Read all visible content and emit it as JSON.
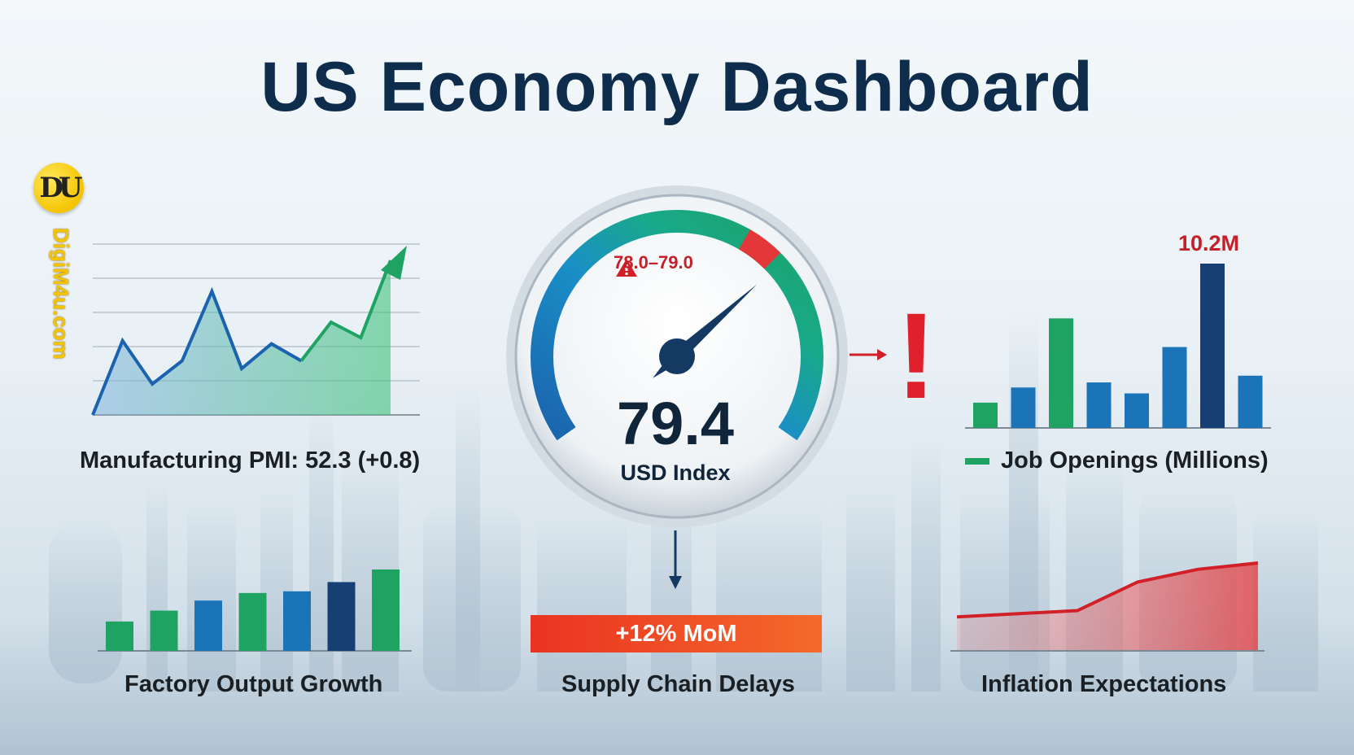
{
  "title": "US Economy Dashboard",
  "logo": {
    "text": "DU",
    "site": "DigiM4u.com"
  },
  "colors": {
    "navy": "#0e2c4b",
    "blue": "#1b73b8",
    "dark_blue": "#163f73",
    "green": "#1ea363",
    "red": "#e0202a",
    "orange": "#f46a2a"
  },
  "chart_data": [
    {
      "type": "line",
      "title": "Manufacturing PMI: 52.3 (+0.8)",
      "series": [
        {
          "values": [
            0,
            0.48,
            0.2,
            0.35,
            0.8,
            0.3,
            0.46,
            0.35,
            0.6,
            0.5,
            1.0
          ]
        }
      ],
      "grid": true,
      "trend": "upward arrow (green)"
    },
    {
      "type": "gauge",
      "value": "79.4",
      "label": "USD Index",
      "alert_range": "78.0–79.0",
      "gauge_fraction": 0.9
    },
    {
      "type": "bar",
      "title": "Job Openings (Millions)",
      "legend": "Job Openings (Millions)",
      "values": [
        3.0,
        4.8,
        13.0,
        5.4,
        4.1,
        9.6,
        19.5,
        6.2
      ],
      "colors": [
        "#1ea363",
        "#1b73b8",
        "#1ea363",
        "#1b73b8",
        "#1b73b8",
        "#1b73b8",
        "#163f73",
        "#1b73b8"
      ],
      "peak_label": "10.2M"
    },
    {
      "type": "bar",
      "title": "Factory Output Growth",
      "values": [
        3.5,
        4.8,
        6.0,
        6.9,
        7.1,
        8.2,
        9.7
      ],
      "colors": [
        "#1ea363",
        "#1ea363",
        "#1b73b8",
        "#1ea363",
        "#1b73b8",
        "#163f73",
        "#1ea363"
      ]
    },
    {
      "type": "bar",
      "title": "Supply Chain Delays",
      "label": "+12% MoM"
    },
    {
      "type": "area",
      "title": "Inflation Expectations",
      "series": [
        {
          "values": [
            0.15,
            0.2,
            0.25,
            0.7,
            0.9,
            1.0
          ]
        }
      ],
      "color": "#e0202a"
    }
  ],
  "icons": {
    "alert": "exclamation-icon",
    "warning": "warning-triangle-icon",
    "arrow_right": "arrow-right-icon",
    "arrow_down": "arrow-down-icon"
  }
}
